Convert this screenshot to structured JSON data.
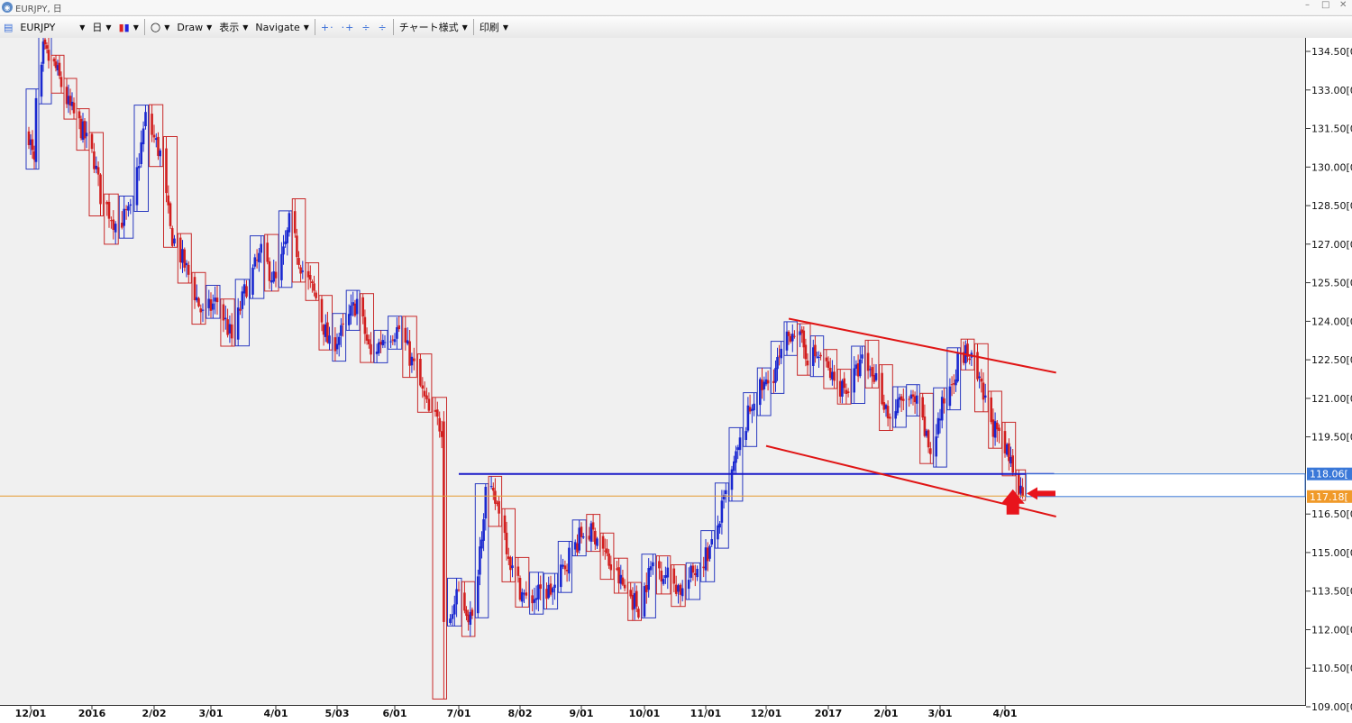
{
  "window": {
    "title": "EURJPY, 日"
  },
  "toolbar": {
    "symbol": "EURJPY",
    "period": "日",
    "draw": "Draw",
    "display": "表示",
    "navigate": "Navigate",
    "chart_style": "チャート様式",
    "print": "印刷"
  },
  "chart_data": {
    "type": "candlestick",
    "title": "",
    "xlabel": "",
    "ylabel": "",
    "ylim": [
      109.1,
      135.4
    ],
    "y_ticks": [
      "134.50[0",
      "133.00[0",
      "131.50[0",
      "130.00[0",
      "128.50[0",
      "127.00[0",
      "125.50[0",
      "124.00[0",
      "122.50[0",
      "121.00[0",
      "119.50[0",
      "116.50[0",
      "115.00[0",
      "113.50[0",
      "112.00[0",
      "110.50[0",
      "109.00[0"
    ],
    "x_ticks": [
      "12/01",
      "2016",
      "2/02",
      "3/01",
      "4/01",
      "5/03",
      "6/01",
      "7/01",
      "8/02",
      "9/01",
      "10/01",
      "11/01",
      "12/01",
      "2017",
      "2/01",
      "3/01",
      "4/01"
    ],
    "grid": false,
    "price_series": [
      [
        "2015-11-30",
        131.3
      ],
      [
        "2015-12-03",
        130.0
      ],
      [
        "2015-12-04",
        132.5
      ],
      [
        "2015-12-07",
        133.6
      ],
      [
        "2015-12-08",
        134.5
      ],
      [
        "2015-12-15",
        133.8
      ],
      [
        "2015-12-22",
        132.4
      ],
      [
        "2015-12-29",
        131.5
      ],
      [
        "2016-01-05",
        130.3
      ],
      [
        "2016-01-08",
        128.9
      ],
      [
        "2016-01-15",
        127.8
      ],
      [
        "2016-01-22",
        128.2
      ],
      [
        "2016-01-29",
        131.9
      ],
      [
        "2016-02-05",
        130.5
      ],
      [
        "2016-02-10",
        127.5
      ],
      [
        "2016-02-19",
        125.8
      ],
      [
        "2016-02-26",
        124.2
      ],
      [
        "2016-03-04",
        124.8
      ],
      [
        "2016-03-11",
        123.3
      ],
      [
        "2016-03-18",
        125.4
      ],
      [
        "2016-03-25",
        126.6
      ],
      [
        "2016-04-01",
        125.5
      ],
      [
        "2016-04-06",
        126.9
      ],
      [
        "2016-04-08",
        127.8
      ],
      [
        "2016-04-15",
        126.0
      ],
      [
        "2016-04-22",
        124.9
      ],
      [
        "2016-04-29",
        123.0
      ],
      [
        "2016-05-06",
        123.6
      ],
      [
        "2016-05-13",
        124.8
      ],
      [
        "2016-05-20",
        122.6
      ],
      [
        "2016-05-27",
        123.5
      ],
      [
        "2016-06-03",
        123.7
      ],
      [
        "2016-06-10",
        122.2
      ],
      [
        "2016-06-17",
        120.4
      ],
      [
        "2016-06-23",
        119.9
      ],
      [
        "2016-06-24",
        113.4
      ],
      [
        "2016-06-27",
        112.5
      ],
      [
        "2016-07-01",
        113.4
      ],
      [
        "2016-07-08",
        112.3
      ],
      [
        "2016-07-15",
        117.4
      ],
      [
        "2016-07-22",
        116.8
      ],
      [
        "2016-07-29",
        114.3
      ],
      [
        "2016-08-05",
        113.1
      ],
      [
        "2016-08-12",
        113.4
      ],
      [
        "2016-08-19",
        113.6
      ],
      [
        "2016-08-26",
        114.9
      ],
      [
        "2016-09-02",
        115.8
      ],
      [
        "2016-09-09",
        115.7
      ],
      [
        "2016-09-16",
        114.4
      ],
      [
        "2016-09-23",
        113.6
      ],
      [
        "2016-09-30",
        112.9
      ],
      [
        "2016-10-07",
        114.6
      ],
      [
        "2016-10-14",
        114.1
      ],
      [
        "2016-10-21",
        113.5
      ],
      [
        "2016-10-28",
        114.5
      ],
      [
        "2016-11-04",
        115.2
      ],
      [
        "2016-11-11",
        117.2
      ],
      [
        "2016-11-18",
        119.2
      ],
      [
        "2016-11-25",
        121.1
      ],
      [
        "2016-12-02",
        121.6
      ],
      [
        "2016-12-09",
        122.6
      ],
      [
        "2016-12-15",
        123.8
      ],
      [
        "2016-12-23",
        122.7
      ],
      [
        "2016-12-30",
        122.6
      ],
      [
        "2017-01-06",
        121.6
      ],
      [
        "2017-01-13",
        121.4
      ],
      [
        "2017-01-20",
        122.4
      ],
      [
        "2017-01-27",
        121.8
      ],
      [
        "2017-02-03",
        120.2
      ],
      [
        "2017-02-10",
        121.0
      ],
      [
        "2017-02-17",
        120.7
      ],
      [
        "2017-02-24",
        118.9
      ],
      [
        "2017-03-03",
        120.9
      ],
      [
        "2017-03-10",
        122.4
      ],
      [
        "2017-03-15",
        122.8
      ],
      [
        "2017-03-24",
        120.8
      ],
      [
        "2017-03-31",
        119.3
      ],
      [
        "2017-04-07",
        118.4
      ],
      [
        "2017-04-12",
        117.2
      ]
    ],
    "overlays": [
      {
        "type": "horizontal_line",
        "color": "#1a1ac8",
        "value": 118.06,
        "from": "2016-07-01",
        "to": "2017-04-28"
      },
      {
        "type": "trendline",
        "color": "#e01515",
        "points": [
          [
            "2016-12-13",
            124.1
          ],
          [
            "2017-04-29",
            122.0
          ]
        ]
      },
      {
        "type": "trendline",
        "color": "#e01515",
        "points": [
          [
            "2016-12-01",
            119.15
          ],
          [
            "2017-04-29",
            116.4
          ]
        ]
      }
    ],
    "price_tags": [
      {
        "label": "118.06[",
        "value": 118.06,
        "color": "#3a78d8"
      },
      {
        "label": "117.18[",
        "value": 117.18,
        "color": "#f09a2a"
      }
    ],
    "colors": {
      "up": "#1a28d0",
      "down": "#d21f1f",
      "box_up": "#2a3ac0",
      "box_down": "#c82a2a",
      "price_line": "#e69a30"
    }
  }
}
